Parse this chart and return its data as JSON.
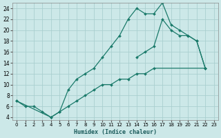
{
  "xlabel": "Humidex (Indice chaleur)",
  "bg_color": "#cce8e8",
  "grid_color": "#aacfcf",
  "line_color": "#1a7a6a",
  "xlim": [
    -0.5,
    23.5
  ],
  "ylim": [
    3.5,
    25
  ],
  "xticks": [
    0,
    1,
    2,
    3,
    4,
    5,
    6,
    7,
    8,
    9,
    10,
    11,
    12,
    13,
    14,
    15,
    16,
    17,
    18,
    19,
    20,
    21,
    22,
    23
  ],
  "yticks": [
    4,
    6,
    8,
    10,
    12,
    14,
    16,
    18,
    20,
    22,
    24
  ],
  "line1_x": [
    0,
    1,
    2,
    3,
    4,
    5,
    6,
    7,
    8,
    9,
    10,
    11,
    12,
    13,
    14,
    15,
    16,
    17,
    18,
    19,
    20,
    21,
    22
  ],
  "line1_y": [
    7,
    6,
    6,
    5,
    4,
    5,
    9,
    11,
    12,
    13,
    15,
    17,
    19,
    22,
    24,
    23,
    23,
    25,
    21,
    20,
    19,
    18,
    13
  ],
  "line2_x": [
    14,
    15,
    16,
    17,
    18,
    19,
    20,
    21,
    22
  ],
  "line2_y": [
    15,
    16,
    17,
    22,
    20,
    19,
    19,
    18,
    13
  ],
  "line3_x": [
    0,
    4,
    5,
    6,
    7,
    8,
    9,
    10,
    11,
    12,
    13,
    14,
    15,
    16,
    22
  ],
  "line3_y": [
    7,
    4,
    5,
    6,
    7,
    8,
    9,
    10,
    10,
    11,
    11,
    12,
    12,
    13,
    13
  ]
}
